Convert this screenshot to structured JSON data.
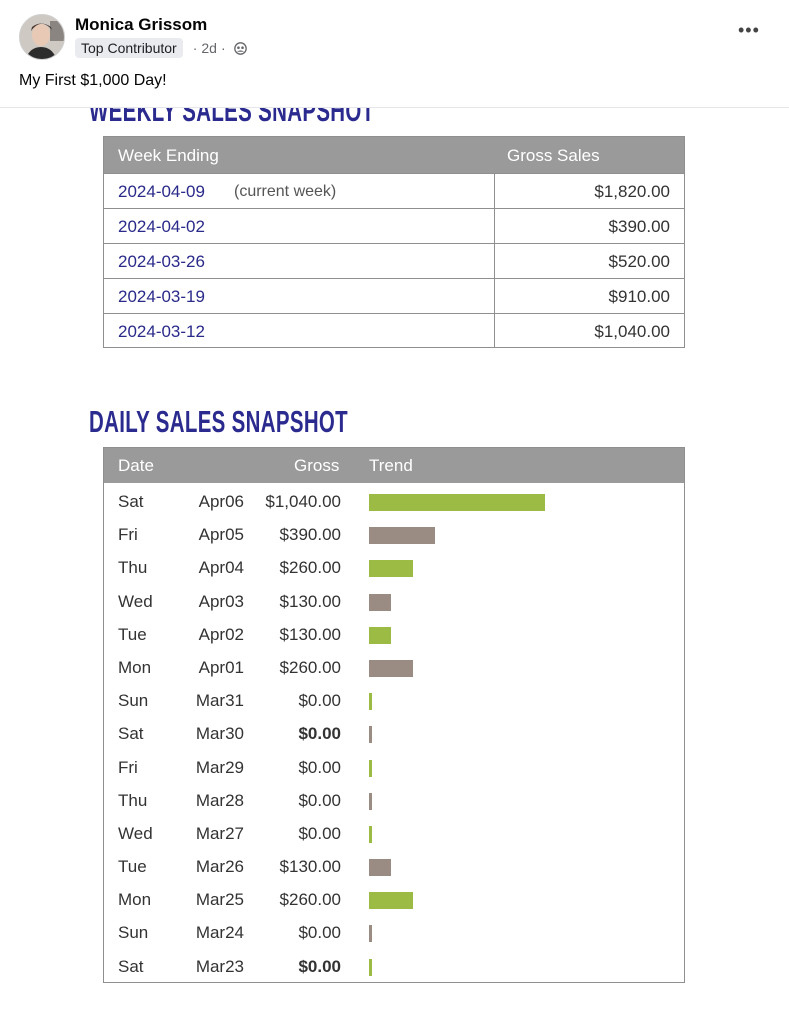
{
  "post": {
    "author": "Monica Grissom",
    "badge": "Top Contributor",
    "time": "2d",
    "dot": "·",
    "more": "•••",
    "caption": "My First $1,000 Day!"
  },
  "weekly": {
    "title": "WEEKLY SALES SNAPSHOT",
    "headers": {
      "week": "Week Ending",
      "sales": "Gross Sales"
    },
    "rows": [
      {
        "date": "2024-04-09",
        "note": "(current week)",
        "amount": "$1,820.00"
      },
      {
        "date": "2024-04-02",
        "note": "",
        "amount": "$390.00"
      },
      {
        "date": "2024-03-26",
        "note": "",
        "amount": "$520.00"
      },
      {
        "date": "2024-03-19",
        "note": "",
        "amount": "$910.00"
      },
      {
        "date": "2024-03-12",
        "note": "",
        "amount": "$1,040.00"
      }
    ]
  },
  "daily": {
    "title": "DAILY SALES SNAPSHOT",
    "headers": {
      "date": "Date",
      "gross": "Gross",
      "trend": "Trend"
    },
    "colors": {
      "green": "#9cbb45",
      "taupe": "#9a8c82"
    },
    "max_value": 1040,
    "rows": [
      {
        "day": "Sat",
        "date": "Apr06",
        "gross": "$1,040.00",
        "value": 1040,
        "color": "green",
        "bold": false
      },
      {
        "day": "Fri",
        "date": "Apr05",
        "gross": "$390.00",
        "value": 390,
        "color": "taupe",
        "bold": false
      },
      {
        "day": "Thu",
        "date": "Apr04",
        "gross": "$260.00",
        "value": 260,
        "color": "green",
        "bold": false
      },
      {
        "day": "Wed",
        "date": "Apr03",
        "gross": "$130.00",
        "value": 130,
        "color": "taupe",
        "bold": false
      },
      {
        "day": "Tue",
        "date": "Apr02",
        "gross": "$130.00",
        "value": 130,
        "color": "green",
        "bold": false
      },
      {
        "day": "Mon",
        "date": "Apr01",
        "gross": "$260.00",
        "value": 260,
        "color": "taupe",
        "bold": false
      },
      {
        "day": "Sun",
        "date": "Mar31",
        "gross": "$0.00",
        "value": 0,
        "color": "green",
        "bold": false
      },
      {
        "day": "Sat",
        "date": "Mar30",
        "gross": "$0.00",
        "value": 0,
        "color": "taupe",
        "bold": true
      },
      {
        "day": "Fri",
        "date": "Mar29",
        "gross": "$0.00",
        "value": 0,
        "color": "green",
        "bold": false
      },
      {
        "day": "Thu",
        "date": "Mar28",
        "gross": "$0.00",
        "value": 0,
        "color": "taupe",
        "bold": false
      },
      {
        "day": "Wed",
        "date": "Mar27",
        "gross": "$0.00",
        "value": 0,
        "color": "green",
        "bold": false
      },
      {
        "day": "Tue",
        "date": "Mar26",
        "gross": "$130.00",
        "value": 130,
        "color": "taupe",
        "bold": false
      },
      {
        "day": "Mon",
        "date": "Mar25",
        "gross": "$260.00",
        "value": 260,
        "color": "green",
        "bold": false
      },
      {
        "day": "Sun",
        "date": "Mar24",
        "gross": "$0.00",
        "value": 0,
        "color": "taupe",
        "bold": false
      },
      {
        "day": "Sat",
        "date": "Mar23",
        "gross": "$0.00",
        "value": 0,
        "color": "green",
        "bold": true
      }
    ]
  }
}
